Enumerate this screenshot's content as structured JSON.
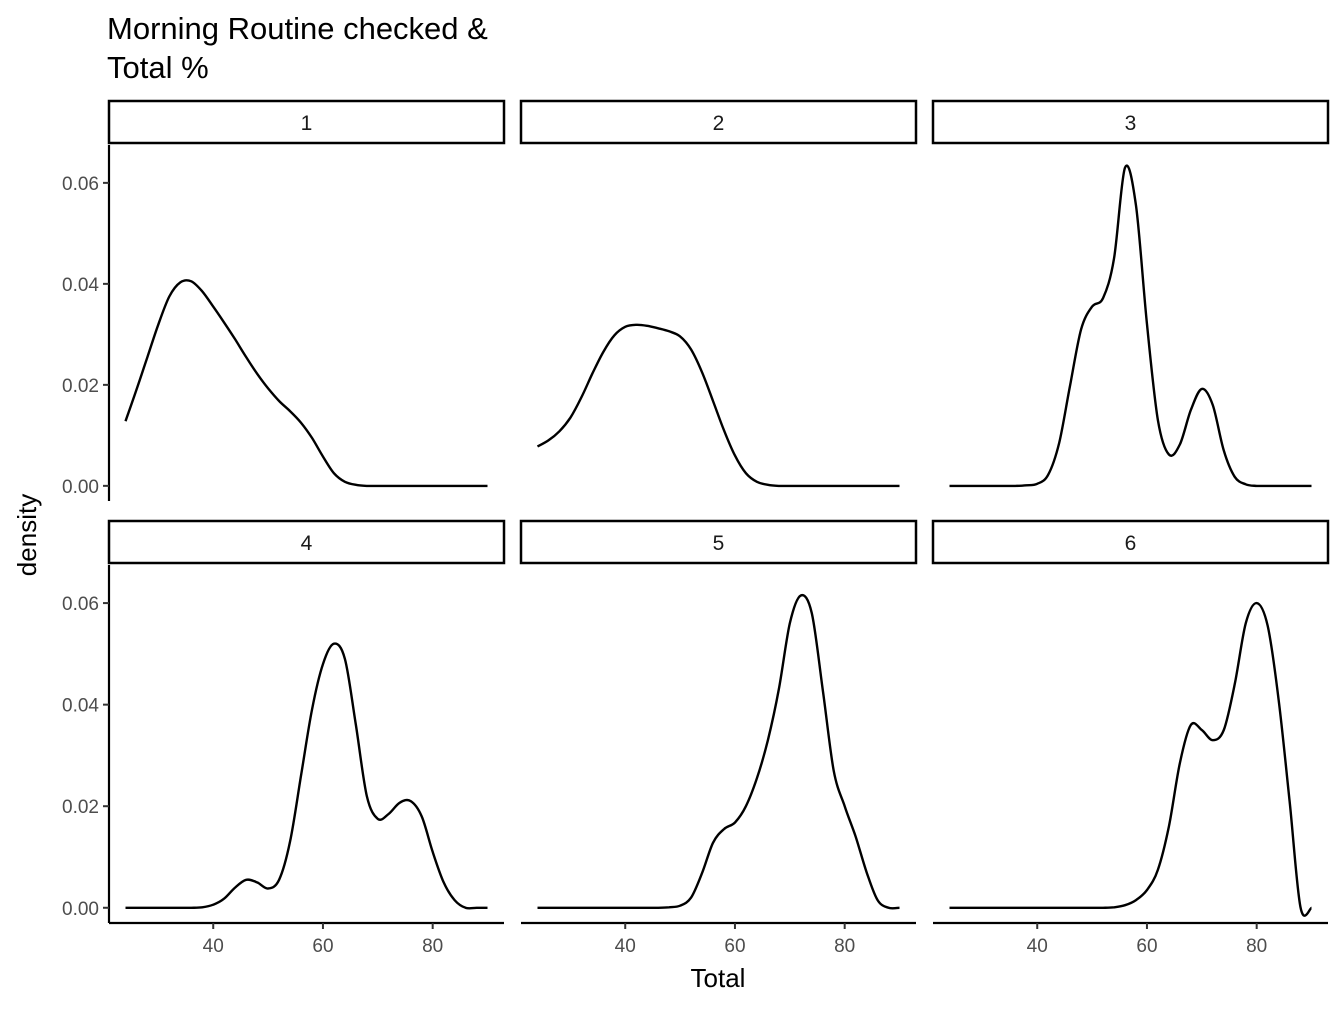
{
  "chart_data": {
    "type": "area",
    "title_lines": [
      "Morning Routine checked &",
      "Total %"
    ],
    "xlabel": "Total",
    "ylabel": "density",
    "xlim": [
      21,
      93
    ],
    "ylim": [
      -0.003,
      0.0675
    ],
    "x_ticks": [
      40,
      60,
      80
    ],
    "y_ticks": [
      0,
      0.02,
      0.04,
      0.06
    ],
    "y_tick_labels": [
      "0.00",
      "0.02",
      "0.04",
      "0.06"
    ],
    "grid": false,
    "legend": "none",
    "facet_layout": {
      "rows": 2,
      "cols": 3
    },
    "x": [
      24,
      26,
      28,
      30,
      32,
      34,
      36,
      38,
      40,
      42,
      44,
      46,
      48,
      50,
      52,
      54,
      56,
      58,
      60,
      62,
      64,
      66,
      68,
      70,
      72,
      74,
      76,
      78,
      80,
      82,
      84,
      86,
      88,
      90
    ],
    "series": [
      {
        "name": "1",
        "values": [
          0.0128,
          0.019,
          0.0255,
          0.032,
          0.0375,
          0.0403,
          0.0405,
          0.0385,
          0.0355,
          0.0323,
          0.029,
          0.0255,
          0.0222,
          0.0193,
          0.0168,
          0.0148,
          0.0125,
          0.0095,
          0.0058,
          0.0025,
          0.0008,
          0.0002,
          0,
          0,
          0,
          0,
          0,
          0,
          0,
          0,
          0,
          0,
          0,
          0
        ]
      },
      {
        "name": "2",
        "values": [
          0.0078,
          0.009,
          0.0108,
          0.0135,
          0.0175,
          0.0222,
          0.0265,
          0.0298,
          0.0315,
          0.0319,
          0.0317,
          0.0312,
          0.0306,
          0.0296,
          0.027,
          0.0225,
          0.0168,
          0.011,
          0.006,
          0.0025,
          0.0008,
          0.0002,
          0,
          0,
          0,
          0,
          0,
          0,
          0,
          0,
          0,
          0,
          0,
          0
        ]
      },
      {
        "name": "3",
        "values": [
          0,
          0,
          0,
          0,
          0,
          0,
          0,
          0.0001,
          0.0004,
          0.0022,
          0.0085,
          0.02,
          0.031,
          0.0355,
          0.0372,
          0.045,
          0.063,
          0.0555,
          0.032,
          0.013,
          0.0062,
          0.0082,
          0.015,
          0.0192,
          0.016,
          0.007,
          0.0018,
          0.0003,
          0,
          0,
          0,
          0,
          0,
          0
        ]
      },
      {
        "name": "4",
        "values": [
          0,
          0,
          0,
          0,
          0,
          0,
          0,
          0.0001,
          0.0006,
          0.0018,
          0.004,
          0.0055,
          0.005,
          0.0038,
          0.0055,
          0.013,
          0.026,
          0.039,
          0.048,
          0.052,
          0.049,
          0.036,
          0.022,
          0.0175,
          0.0185,
          0.0207,
          0.021,
          0.018,
          0.011,
          0.005,
          0.0015,
          0,
          0,
          0
        ]
      },
      {
        "name": "5",
        "values": [
          0,
          0,
          0,
          0,
          0,
          0,
          0,
          0,
          0,
          0,
          0,
          0,
          0.0001,
          0.0004,
          0.002,
          0.0068,
          0.0128,
          0.0155,
          0.0168,
          0.02,
          0.0255,
          0.033,
          0.043,
          0.056,
          0.0615,
          0.058,
          0.043,
          0.027,
          0.02,
          0.014,
          0.007,
          0.0015,
          0,
          0
        ]
      },
      {
        "name": "6",
        "values": [
          0,
          0,
          0,
          0,
          0,
          0,
          0,
          0,
          0,
          0,
          0,
          0,
          0,
          0,
          0,
          0.0001,
          0.0005,
          0.0015,
          0.0035,
          0.0075,
          0.016,
          0.0285,
          0.036,
          0.035,
          0.033,
          0.035,
          0.044,
          0.056,
          0.06,
          0.0555,
          0.041,
          0.021,
          0,
          0
        ]
      }
    ]
  }
}
